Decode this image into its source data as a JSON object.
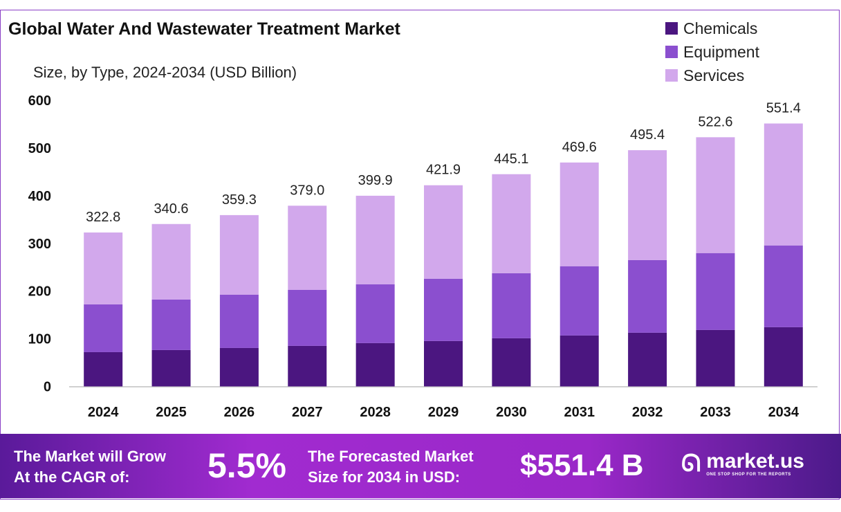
{
  "chart_data": {
    "type": "bar",
    "stacked": true,
    "title": "Global Water And Wastewater Treatment Market",
    "subtitle": "Size, by Type, 2024-2034 (USD Billion)",
    "categories": [
      "2024",
      "2025",
      "2026",
      "2027",
      "2028",
      "2029",
      "2030",
      "2031",
      "2032",
      "2033",
      "2034"
    ],
    "series": [
      {
        "name": "Chemicals",
        "color": "#4b1680",
        "values": [
          71.9,
          76.3,
          80.6,
          85.0,
          90.8,
          95.2,
          101.0,
          106.8,
          112.6,
          118.4,
          124.2
        ]
      },
      {
        "name": "Equipment",
        "color": "#8b4fcf",
        "values": [
          100.3,
          106.0,
          111.9,
          117.7,
          123.5,
          130.7,
          136.5,
          145.3,
          152.5,
          161.3,
          171.5
        ]
      },
      {
        "name": "Services",
        "color": "#d2a8ec",
        "values": [
          150.6,
          158.3,
          166.8,
          176.3,
          185.6,
          196.0,
          207.6,
          217.5,
          230.3,
          242.9,
          255.7
        ]
      }
    ],
    "totals": [
      "322.8",
      "340.6",
      "359.3",
      "379.0",
      "399.9",
      "421.9",
      "445.1",
      "469.6",
      "495.4",
      "522.6",
      "551.4"
    ],
    "ylim": [
      0,
      600
    ],
    "yticks": [
      "0",
      "100",
      "200",
      "300",
      "400",
      "500",
      "600"
    ],
    "grid": false,
    "legend": "top-right"
  },
  "banner": {
    "cagr_label_1": "The Market will Grow",
    "cagr_label_2": "At the CAGR of:",
    "cagr_value": "5.5%",
    "forecast_label_1": "The Forecasted Market",
    "forecast_label_2": "Size for 2034 in USD:",
    "forecast_value": "$551.4 B",
    "logo_name": "market.us",
    "logo_tagline": "ONE STOP SHOP FOR THE REPORTS"
  }
}
